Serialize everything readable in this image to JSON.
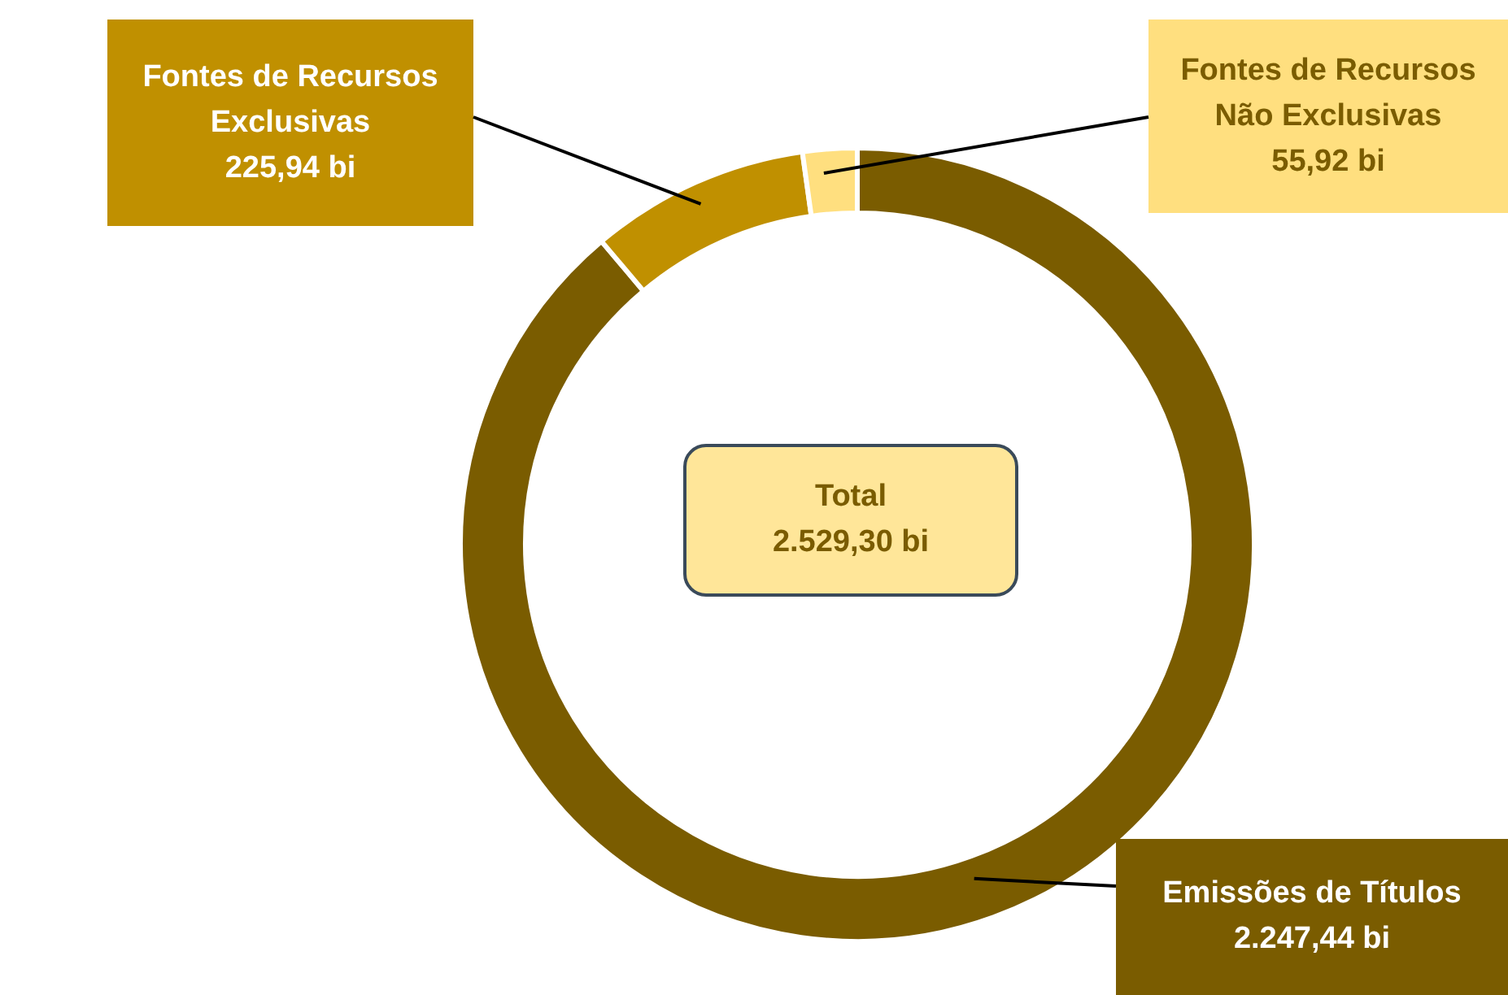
{
  "chart_data": {
    "type": "donut",
    "categories": [
      "Emissões de Títulos",
      "Fontes de Recursos Exclusivas",
      "Fontes de Recursos Não Exclusivas"
    ],
    "values": [
      2247.44,
      225.94,
      55.92
    ],
    "colors": [
      "#7a5c00",
      "#c09000",
      "#ffdf7f"
    ],
    "value_labels": [
      "2.247,44 bi",
      "225,94 bi",
      "55,92 bi"
    ],
    "annotations": [
      "Total\n2.529,30 bi"
    ],
    "legend": false
  }
}
